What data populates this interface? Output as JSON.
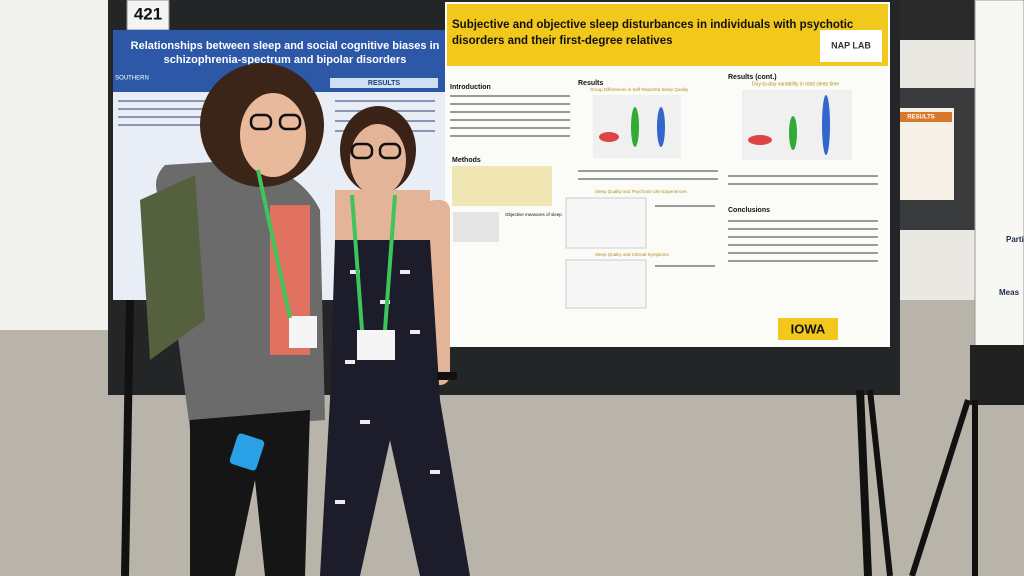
{
  "booth_number": "421",
  "left_poster": {
    "title_lines": [
      "Relationships between sleep and social cognitive biases in",
      "schizophrenia-spectrum and bipolar disorders"
    ],
    "logo": "SOUTHERN",
    "section": "RESULTS"
  },
  "main_poster": {
    "title_lines": [
      "Subjective and objective sleep disturbances in individuals with psychotic",
      "disorders and their first-degree relatives"
    ],
    "logo": "NAP LAB",
    "sections": [
      "Introduction",
      "Methods",
      "Results",
      "Results (cont.)",
      "Conclusions"
    ],
    "figure_titles": [
      "Group Differences in Self-Reported Sleep Quality",
      "Sleep Quality and Psychotic-Like Experiences",
      "Sleep Quality and Clinical Symptoms",
      "Day-to-day variability in total sleep time",
      "Objective measures of sleep"
    ],
    "footer_logo": "IOWA"
  },
  "side_poster": {
    "header": "RESULTS"
  },
  "right_poster": {
    "items": [
      "Parti",
      "Meas"
    ]
  }
}
